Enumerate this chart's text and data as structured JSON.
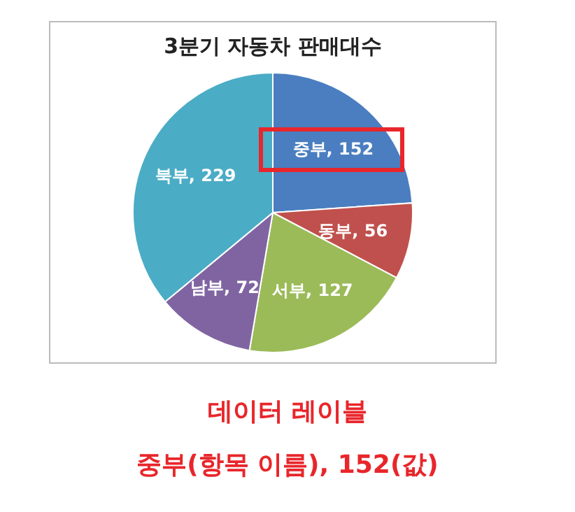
{
  "chart_data": {
    "type": "pie",
    "title": "3분기 자동차 판매대수",
    "categories": [
      "중부",
      "동부",
      "서부",
      "남부",
      "북부"
    ],
    "values": [
      152,
      56,
      127,
      72,
      229
    ],
    "value_labels": [
      ", 152",
      ", 56",
      ", 127",
      ", 72",
      ", 229"
    ],
    "colors": [
      "#4a7ec0",
      "#c0504d",
      "#9bbb59",
      "#8064a2",
      "#4bacc6"
    ],
    "legend": false,
    "annotations": [
      "데이터 레이블",
      "중부(항목 이름), 152(값)"
    ]
  }
}
